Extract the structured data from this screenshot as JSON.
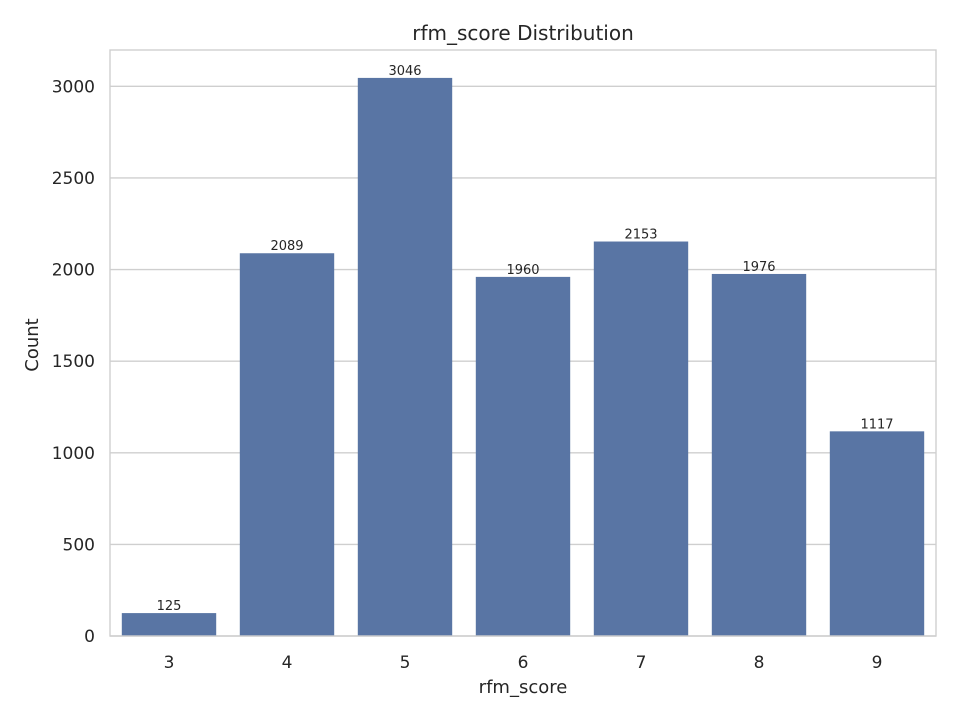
{
  "chart_data": {
    "type": "bar",
    "title": "rfm_score Distribution",
    "xlabel": "rfm_score",
    "ylabel": "Count",
    "categories": [
      "3",
      "4",
      "5",
      "6",
      "7",
      "8",
      "9"
    ],
    "values": [
      125,
      2089,
      3046,
      1960,
      2153,
      1976,
      1117
    ],
    "data_labels": [
      "125",
      "2089",
      "3046",
      "1960",
      "2153",
      "1976",
      "1117"
    ],
    "yticks": [
      0,
      500,
      1000,
      1500,
      2000,
      2500,
      3000
    ],
    "ytick_labels": [
      "0",
      "500",
      "1000",
      "1500",
      "2000",
      "2500",
      "3000"
    ],
    "ylim": [
      0,
      3198.3
    ],
    "grid": "horizontal",
    "bar_color": "#5975a4"
  }
}
